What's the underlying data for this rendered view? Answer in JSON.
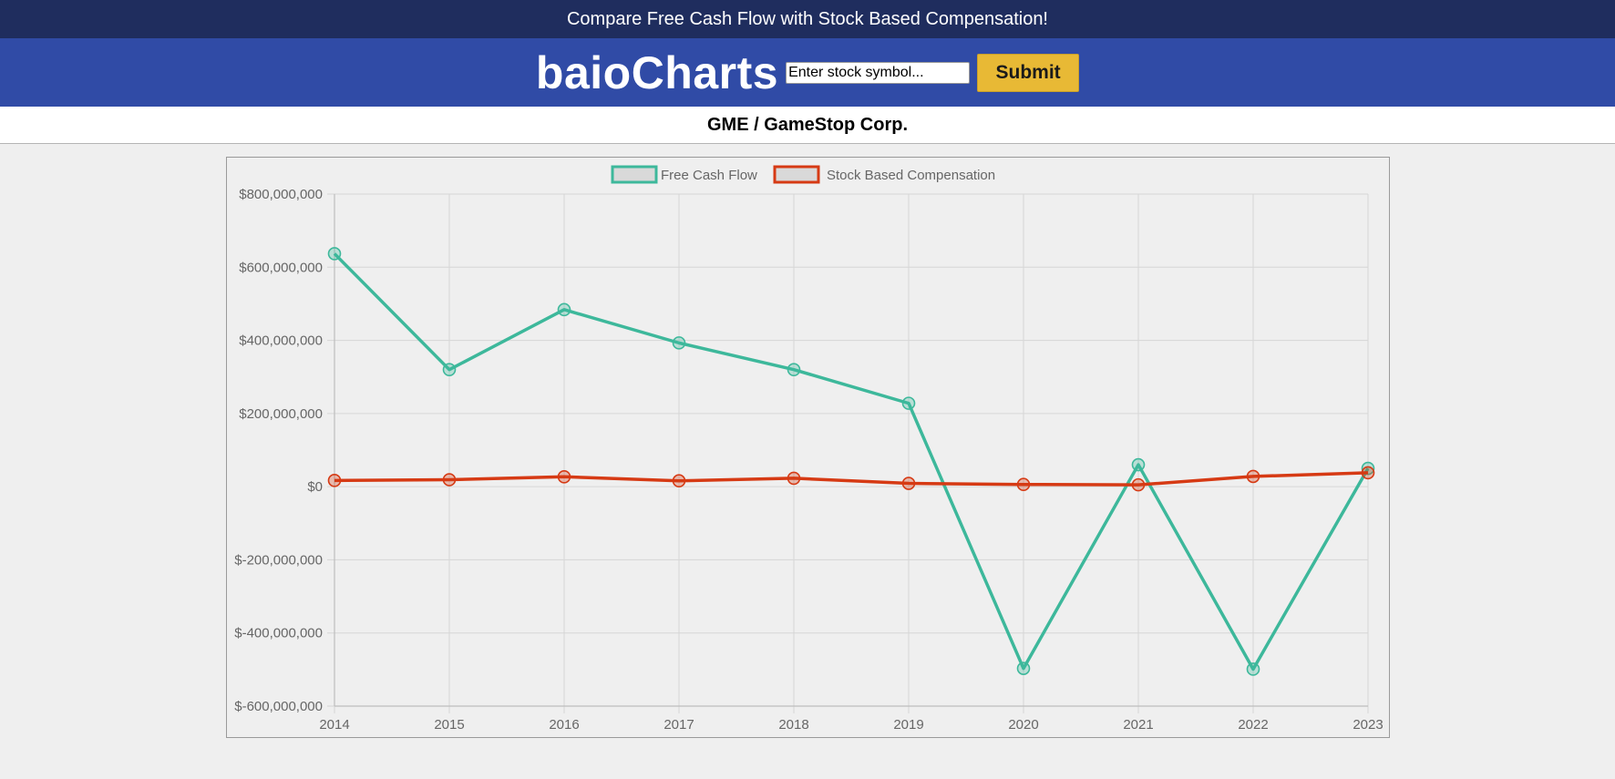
{
  "topbar": {
    "text": "Compare Free Cash Flow with Stock Based Compensation!"
  },
  "header": {
    "brand": "baioCharts",
    "symbol_placeholder": "Enter stock symbol...",
    "submit_label": "Submit"
  },
  "company": {
    "title": "GME / GameStop Corp."
  },
  "chart_data": {
    "type": "line",
    "x": [
      "2014",
      "2015",
      "2016",
      "2017",
      "2018",
      "2019",
      "2020",
      "2021",
      "2022",
      "2023"
    ],
    "series": [
      {
        "name": "Free Cash Flow",
        "color": "#3db89b",
        "values": [
          637000000,
          320000000,
          484000000,
          393000000,
          320000000,
          228000000,
          -497000000,
          60000000,
          -499000000,
          50000000
        ]
      },
      {
        "name": "Stock Based Compensation",
        "color": "#d63a14",
        "values": [
          17000000,
          19000000,
          27000000,
          16000000,
          23000000,
          9000000,
          6000000,
          5000000,
          28000000,
          38000000
        ]
      }
    ],
    "ylim": [
      -600000000,
      800000000
    ],
    "yticks": [
      800000000,
      600000000,
      400000000,
      200000000,
      0,
      -200000000,
      -400000000,
      -600000000
    ],
    "ytick_labels": [
      "$800,000,000",
      "$600,000,000",
      "$400,000,000",
      "$200,000,000",
      "$0",
      "$-200,000,000",
      "$-400,000,000",
      "$-600,000,000"
    ],
    "grid": true,
    "legend": "top-center"
  }
}
